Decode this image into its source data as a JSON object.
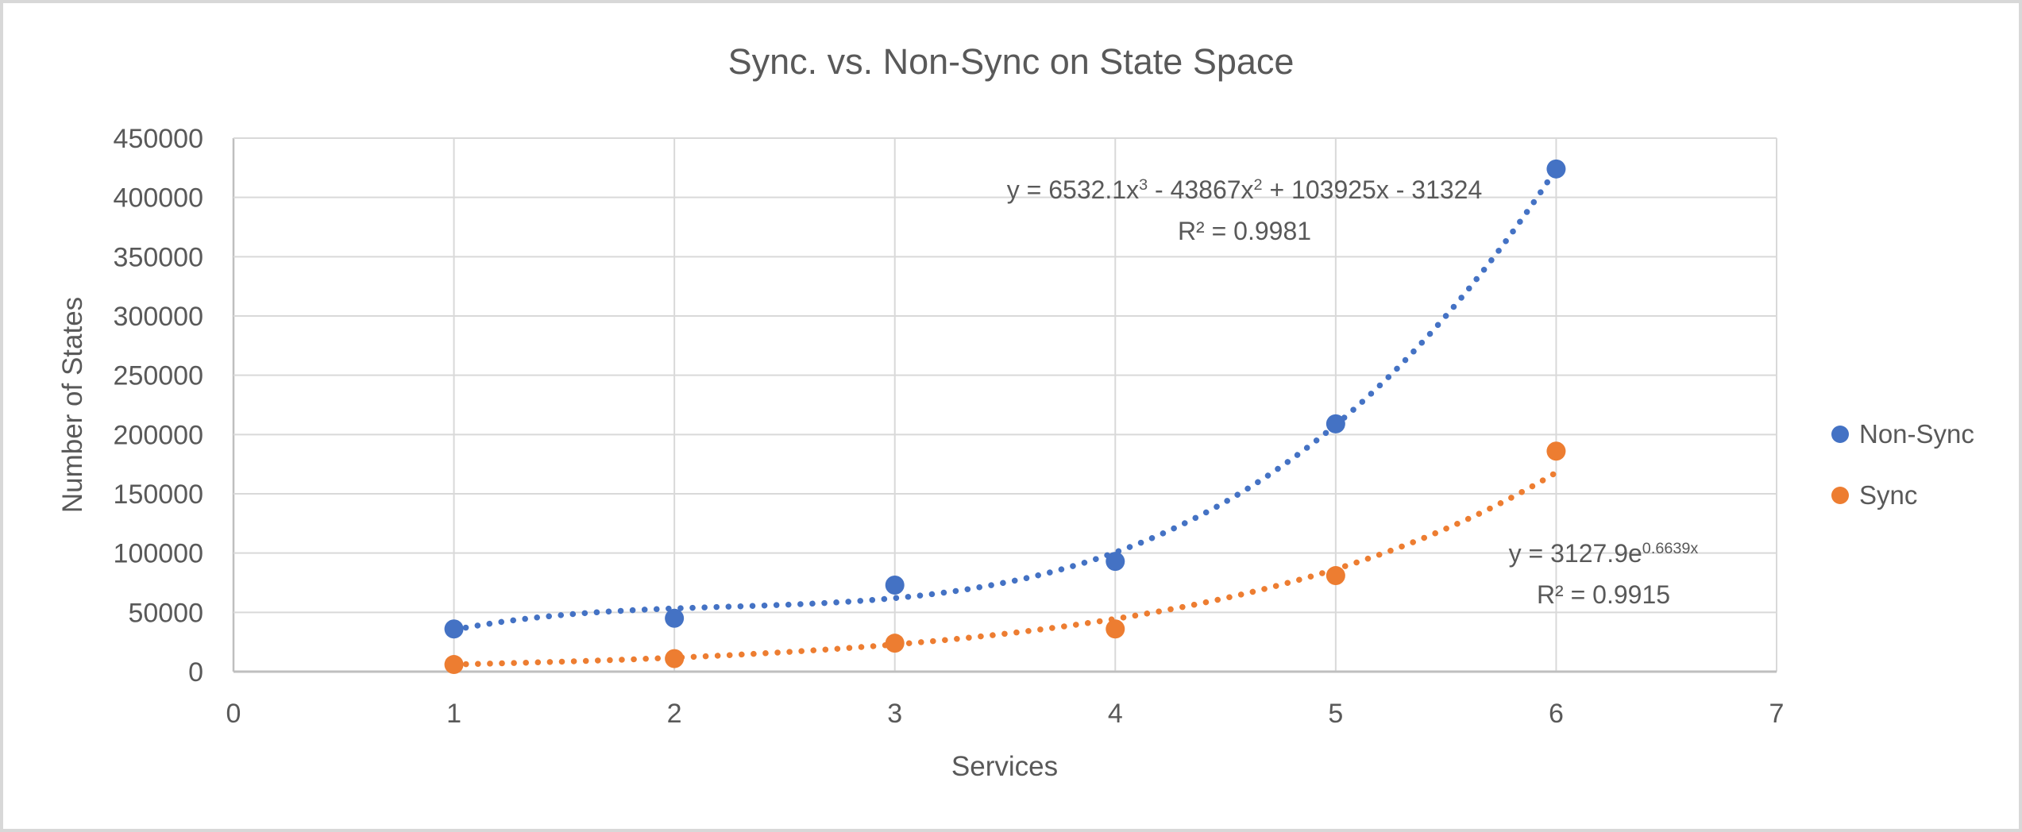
{
  "frame": {
    "border_color": "#D8D8D8",
    "background_color": "#FFFFFF"
  },
  "chart_data": {
    "type": "scatter",
    "title": "Sync. vs. Non-Sync on State Space",
    "xlabel": "Services",
    "ylabel": "Number of States",
    "xlim": [
      0,
      7
    ],
    "ylim": [
      0,
      450000
    ],
    "xticks": [
      0,
      1,
      2,
      3,
      4,
      5,
      6,
      7
    ],
    "yticks": [
      0,
      50000,
      100000,
      150000,
      200000,
      250000,
      300000,
      350000,
      400000,
      450000
    ],
    "grid": true,
    "legend_position": "right",
    "colors": {
      "grid": "#D9D9D9",
      "axis_line": "#BFBFBF",
      "text": "#595959"
    },
    "x": [
      1,
      2,
      3,
      4,
      5,
      6
    ],
    "series": [
      {
        "name": "Non-Sync",
        "color": "#4472C4",
        "values": [
          36000,
          45000,
          73000,
          93000,
          209000,
          424000
        ],
        "trendline": {
          "kind": "polynomial",
          "coefficients": [
            6532.1,
            -43867,
            103925,
            -31324
          ],
          "range": [
            1,
            6
          ],
          "style": "dotted",
          "equation": {
            "p1": "y = 6532.1x",
            "s1": "3",
            "p2": " - 43867x",
            "s2": "2",
            "p3": " + 103925x - 31324"
          },
          "r_squared": "R² = 0.9981"
        }
      },
      {
        "name": "Sync",
        "color": "#ED7D31",
        "values": [
          6000,
          11000,
          24000,
          36000,
          81000,
          186000
        ],
        "trendline": {
          "kind": "exponential",
          "a": 3127.9,
          "b": 0.6639,
          "range": [
            1,
            6
          ],
          "style": "dotted",
          "equation": {
            "base": "y = 3127.9e",
            "exponent": "0.6639x"
          },
          "r_squared": "R² = 0.9915"
        }
      }
    ]
  }
}
